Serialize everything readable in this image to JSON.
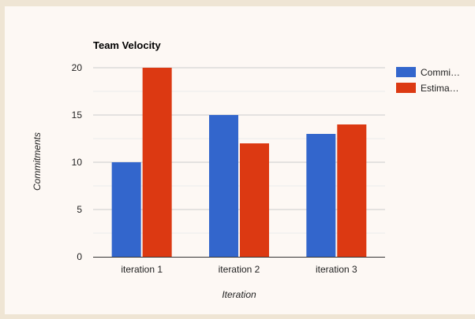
{
  "chart_data": {
    "type": "bar",
    "title": "Team Velocity",
    "xlabel": "Iteration",
    "ylabel": "Commitments",
    "categories": [
      "iteration 1",
      "iteration 2",
      "iteration 3"
    ],
    "series": [
      {
        "name": "Commi…",
        "color": "#3366cc",
        "values": [
          10,
          15,
          13
        ]
      },
      {
        "name": "Estima…",
        "color": "#dc3912",
        "values": [
          20,
          12,
          14
        ]
      }
    ],
    "ylim": [
      0,
      20
    ],
    "yticks": [
      "0",
      "5",
      "10",
      "15",
      "20"
    ],
    "grid": true,
    "legend": "right"
  }
}
